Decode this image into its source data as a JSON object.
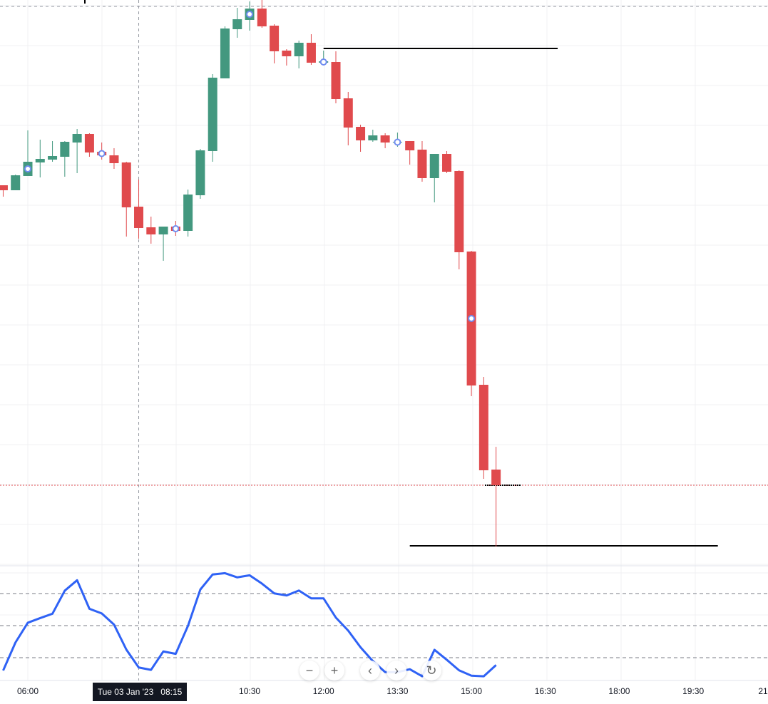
{
  "chart_data": {
    "type": "candlestick",
    "interval": "15m",
    "colors": {
      "up": "#43987f",
      "down": "#e04a4d",
      "oscillator": "#2f62f5",
      "marker": "#6f8cf0",
      "last_price": "#e04a4d",
      "levels": "#000000"
    },
    "candles": [
      {
        "t": "05:30",
        "o": 540,
        "h": 540,
        "l": 524,
        "c": 533
      },
      {
        "t": "05:45",
        "o": 533,
        "h": 555,
        "l": 533,
        "c": 554
      },
      {
        "t": "06:00",
        "o": 553,
        "h": 617,
        "l": 553,
        "c": 573,
        "marker": true
      },
      {
        "t": "06:15",
        "o": 572,
        "h": 604,
        "l": 551,
        "c": 577
      },
      {
        "t": "06:30",
        "o": 576,
        "h": 602,
        "l": 573,
        "c": 581
      },
      {
        "t": "06:45",
        "o": 580,
        "h": 602,
        "l": 552,
        "c": 601
      },
      {
        "t": "07:00",
        "o": 600,
        "h": 619,
        "l": 557,
        "c": 612
      },
      {
        "t": "07:15",
        "o": 612,
        "h": 613,
        "l": 580,
        "c": 586
      },
      {
        "t": "07:30",
        "o": 587,
        "h": 600,
        "l": 576,
        "c": 582,
        "marker": true
      },
      {
        "t": "07:45",
        "o": 582,
        "h": 592,
        "l": 563,
        "c": 571
      },
      {
        "t": "08:00",
        "o": 572,
        "h": 573,
        "l": 468,
        "c": 509
      },
      {
        "t": "08:15",
        "o": 510,
        "h": 548,
        "l": 465,
        "c": 480
      },
      {
        "t": "08:30",
        "o": 481,
        "h": 496,
        "l": 458,
        "c": 471
      },
      {
        "t": "08:45",
        "o": 471,
        "h": 482,
        "l": 434,
        "c": 482
      },
      {
        "t": "09:00",
        "o": 482,
        "h": 490,
        "l": 469,
        "c": 476,
        "marker": true
      },
      {
        "t": "09:15",
        "o": 476,
        "h": 534,
        "l": 468,
        "c": 527
      },
      {
        "t": "09:30",
        "o": 526,
        "h": 591,
        "l": 521,
        "c": 589
      },
      {
        "t": "09:45",
        "o": 588,
        "h": 696,
        "l": 573,
        "c": 691
      },
      {
        "t": "10:00",
        "o": 690,
        "h": 763,
        "l": 690,
        "c": 760
      },
      {
        "t": "10:15",
        "o": 759,
        "h": 789,
        "l": 747,
        "c": 773
      },
      {
        "t": "10:30",
        "o": 772,
        "h": 798,
        "l": 757,
        "c": 788,
        "marker": true
      },
      {
        "t": "10:45",
        "o": 788,
        "h": 800,
        "l": 761,
        "c": 763
      },
      {
        "t": "11:00",
        "o": 764,
        "h": 766,
        "l": 711,
        "c": 728
      },
      {
        "t": "11:15",
        "o": 729,
        "h": 731,
        "l": 708,
        "c": 721
      },
      {
        "t": "11:30",
        "o": 721,
        "h": 743,
        "l": 704,
        "c": 740
      },
      {
        "t": "11:45",
        "o": 740,
        "h": 752,
        "l": 709,
        "c": 712
      },
      {
        "t": "12:00",
        "o": 712,
        "h": 729,
        "l": 712,
        "c": 714,
        "marker": true
      },
      {
        "t": "12:15",
        "o": 713,
        "h": 728,
        "l": 655,
        "c": 661
      },
      {
        "t": "12:30",
        "o": 662,
        "h": 671,
        "l": 596,
        "c": 621
      },
      {
        "t": "12:45",
        "o": 622,
        "h": 625,
        "l": 587,
        "c": 603
      },
      {
        "t": "13:00",
        "o": 603,
        "h": 618,
        "l": 601,
        "c": 610
      },
      {
        "t": "13:15",
        "o": 610,
        "h": 613,
        "l": 592,
        "c": 600
      },
      {
        "t": "13:30",
        "o": 600,
        "h": 614,
        "l": 594,
        "c": 601,
        "marker": true
      },
      {
        "t": "13:45",
        "o": 602,
        "h": 602,
        "l": 569,
        "c": 589
      },
      {
        "t": "14:00",
        "o": 590,
        "h": 602,
        "l": 545,
        "c": 550
      },
      {
        "t": "14:15",
        "o": 550,
        "h": 584,
        "l": 516,
        "c": 584
      },
      {
        "t": "14:30",
        "o": 584,
        "h": 588,
        "l": 557,
        "c": 559
      },
      {
        "t": "14:45",
        "o": 560,
        "h": 561,
        "l": 422,
        "c": 446
      },
      {
        "t": "15:00",
        "o": 447,
        "h": 448,
        "l": 244,
        "c": 259,
        "marker": true
      },
      {
        "t": "15:15",
        "o": 260,
        "h": 271,
        "l": 128,
        "c": 140
      },
      {
        "t": "15:30",
        "o": 141,
        "h": 173,
        "l": 33,
        "c": 119
      }
    ],
    "oscillator": {
      "levels": [
        70,
        50,
        30
      ],
      "values": [
        22.0,
        39.5,
        51.8,
        54.7,
        57.4,
        71.8,
        78.3,
        60.5,
        57.6,
        50.6,
        35.0,
        23.9,
        22.4,
        33.9,
        32.4,
        49.9,
        72.5,
        81.9,
        82.7,
        80.1,
        81.4,
        76.2,
        70.1,
        68.8,
        71.9,
        67.0,
        67.0,
        55.0,
        46.9,
        36.5,
        27.9,
        21.0,
        21.0,
        22.8,
        18.4,
        34.9,
        28.7,
        22.1,
        18.8,
        18.4,
        25.4
      ]
    },
    "horizontal_lines": [
      {
        "level": 732,
        "from": "12:00",
        "to": "16:45"
      },
      {
        "level": 34,
        "from": "13:45",
        "to": "20:00"
      }
    ],
    "last_price": 119,
    "crosshair_time": "08:15",
    "x_tick_labels": [
      {
        "t": "06:00",
        "label": "06:00"
      },
      {
        "t": "10:30",
        "label": "10:30"
      },
      {
        "t": "12:00",
        "label": "12:00"
      },
      {
        "t": "13:30",
        "label": "13:30"
      },
      {
        "t": "15:00",
        "label": "15:00"
      },
      {
        "t": "16:30",
        "label": "16:30"
      },
      {
        "t": "18:00",
        "label": "18:00"
      },
      {
        "t": "19:30",
        "label": "19:30"
      },
      {
        "t": "21:00",
        "label": "21"
      }
    ]
  },
  "crosshair_tooltip": {
    "date": "Tue 03 Jan '23",
    "time": "08:15"
  },
  "nav": {
    "zoom_out": "−",
    "zoom_in": "+",
    "scroll_left": "‹",
    "scroll_right": "›",
    "reset": "↻"
  }
}
